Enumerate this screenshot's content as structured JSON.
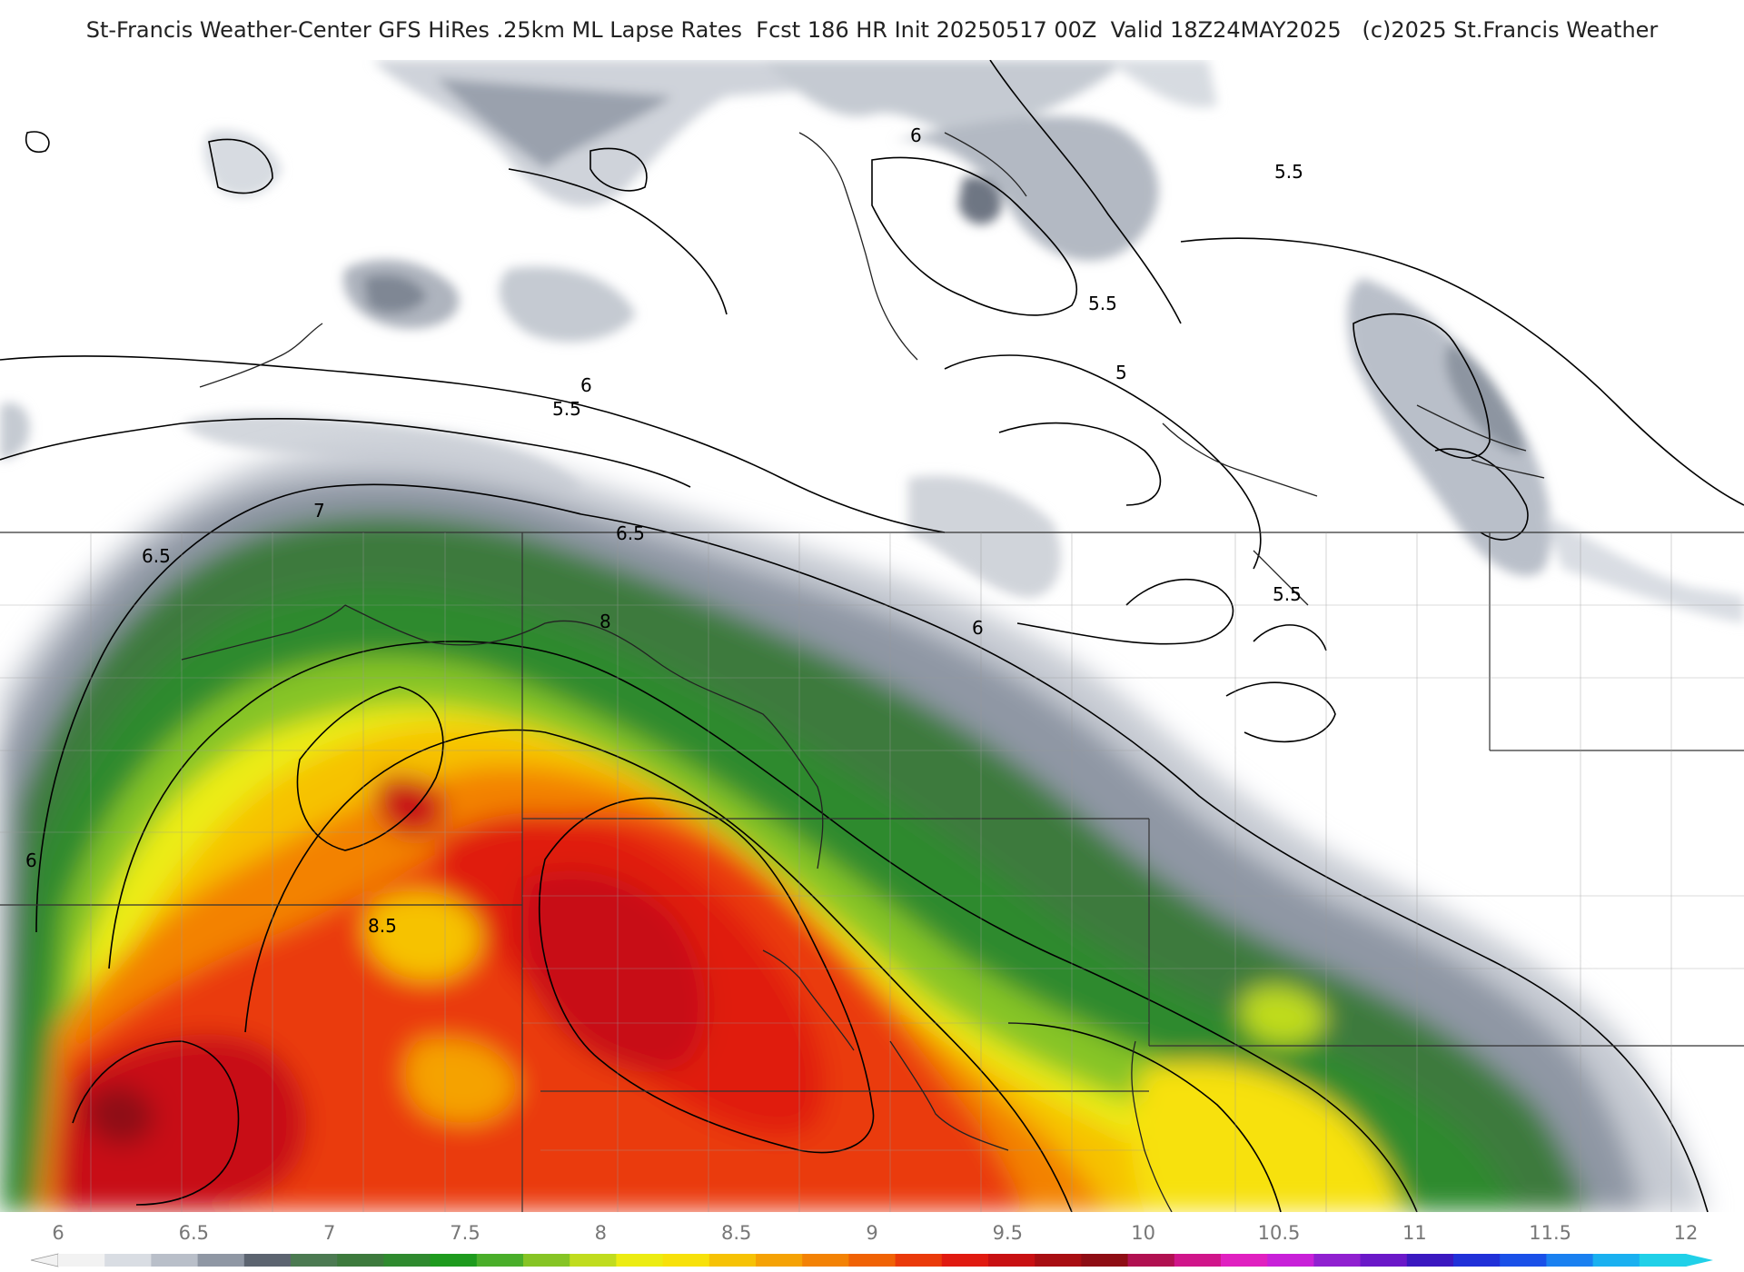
{
  "header": {
    "title": "St-Francis Weather-Center GFS HiRes .25km ML Lapse Rates  Fcst 186 HR Init 20250517 00Z  Valid 18Z24MAY2025   (c)2025 St.Francis Weather"
  },
  "map": {
    "contour_labels": [
      "7",
      "6.5",
      "6.5",
      "8",
      "6",
      "6",
      "8.5",
      "6",
      "5.5",
      "6",
      "5.5",
      "5.5",
      "5",
      "5.5"
    ]
  },
  "legend": {
    "ticks": [
      "6",
      "6.5",
      "7",
      "7.5",
      "8",
      "8.5",
      "9",
      "9.5",
      "10",
      "10.5",
      "11",
      "11.5",
      "12"
    ],
    "colors": [
      "#f2f2f2",
      "#d9dde3",
      "#b9bfc9",
      "#8f97a4",
      "#5c6470",
      "#4c7a52",
      "#3d7a3d",
      "#2f8a2f",
      "#1e9a1e",
      "#4aae2a",
      "#86c425",
      "#c0dc1e",
      "#ecec12",
      "#f7e10a",
      "#f6c205",
      "#f5a205",
      "#f38205",
      "#f06205",
      "#ea3a0a",
      "#e01a10",
      "#c81012",
      "#a80e12",
      "#8e0d14",
      "#b01050",
      "#d0158a",
      "#e020c0",
      "#c820d8",
      "#9020d0",
      "#6a18c8",
      "#3a18c0",
      "#2030d8",
      "#1a50e8",
      "#1a80f0",
      "#1ab0f0",
      "#20d0e8"
    ]
  },
  "colors": {
    "background": "#ffffff",
    "contour": "#000000",
    "border": "#333333"
  }
}
